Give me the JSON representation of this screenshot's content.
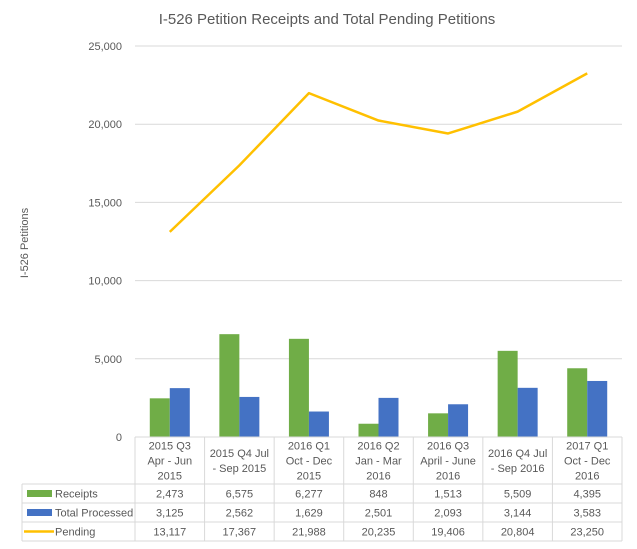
{
  "chart_data": {
    "type": "bar",
    "title": "I-526 Petition Receipts and Total Pending Petitions",
    "xlabel": "",
    "ylabel": "I-526 Petitions",
    "ylim": [
      0,
      25000
    ],
    "yticks": [
      0,
      5000,
      10000,
      15000,
      20000,
      25000
    ],
    "ytick_labels": [
      "0",
      "5,000",
      "10,000",
      "15,000",
      "20,000",
      "25,000"
    ],
    "grid": true,
    "legend": "data-table-left",
    "categories": [
      [
        "2015 Q3",
        "Apr - Jun",
        "2015"
      ],
      [
        "2015 Q4 Jul",
        "- Sep 2015"
      ],
      [
        "2016 Q1",
        "Oct - Dec",
        "2015"
      ],
      [
        "2016 Q2",
        "Jan - Mar",
        "2016"
      ],
      [
        "2016 Q3",
        "April - June",
        "2016"
      ],
      [
        "2016 Q4 Jul",
        "- Sep 2016"
      ],
      [
        "2017 Q1",
        "Oct - Dec",
        "2016"
      ]
    ],
    "series": [
      {
        "name": "Receipts",
        "type": "bar",
        "color": "#70AD47",
        "values": [
          2473,
          6575,
          6277,
          848,
          1513,
          5509,
          4395
        ],
        "labels": [
          "2,473",
          "6,575",
          "6,277",
          "848",
          "1,513",
          "5,509",
          "4,395"
        ]
      },
      {
        "name": "Total Processed",
        "type": "bar",
        "color": "#4472C4",
        "values": [
          3125,
          2562,
          1629,
          2501,
          2093,
          3144,
          3583
        ],
        "labels": [
          "3,125",
          "2,562",
          "1,629",
          "2,501",
          "2,093",
          "3,144",
          "3,583"
        ]
      },
      {
        "name": "Pending",
        "type": "line",
        "color": "#FFC000",
        "values": [
          13117,
          17367,
          21988,
          20235,
          19406,
          20804,
          23250
        ],
        "labels": [
          "13,117",
          "17,367",
          "21,988",
          "20,235",
          "19,406",
          "20,804",
          "23,250"
        ]
      }
    ]
  }
}
